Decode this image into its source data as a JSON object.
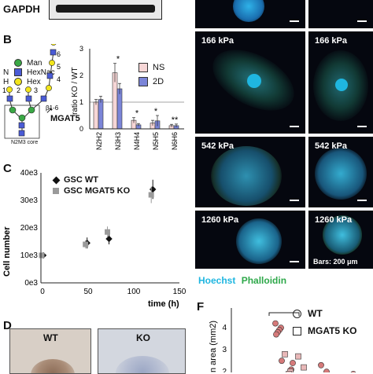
{
  "panelA": {
    "label": "GAPDH"
  },
  "panelB": {
    "letter": "B",
    "glycan_legend": [
      {
        "symbol": "circle",
        "color": "#3aa845",
        "prefix": "",
        "name": "Man"
      },
      {
        "symbol": "square",
        "color": "#4a5bd6",
        "prefix": "N",
        "name": "HexNac"
      },
      {
        "symbol": "circle",
        "color": "#f2e51b",
        "prefix": "H",
        "name": "Hex"
      }
    ],
    "core_label": "N2M3 core",
    "enzyme_label": "MGAT5",
    "linkage_label": "β1-6",
    "branch_numbers": [
      "1",
      "2",
      "3",
      "4",
      "5",
      "6"
    ],
    "chart_data": {
      "type": "bar",
      "categories": [
        "N2H2",
        "N3H3",
        "N4H4",
        "N5H5",
        "N6H6"
      ],
      "series": [
        {
          "name": "NS",
          "color": "#f6d6d6",
          "values": [
            1.0,
            2.1,
            0.32,
            0.22,
            0.12
          ],
          "errors": [
            0.1,
            0.35,
            0.1,
            0.1,
            0.05
          ]
        },
        {
          "name": "2D",
          "color": "#7b85d8",
          "values": [
            1.1,
            1.5,
            0.15,
            0.3,
            0.12
          ],
          "errors": [
            0.12,
            0.2,
            0.05,
            0.2,
            0.06
          ]
        }
      ],
      "ylabel": "ratio KO / WT",
      "ylim": [
        0,
        3
      ],
      "yticks": [
        "0",
        "1",
        "2",
        "3"
      ],
      "significance": [
        "",
        "*",
        "*",
        "*",
        "**"
      ],
      "reference_line": 1
    }
  },
  "panelC": {
    "letter": "C",
    "chart_data": {
      "type": "scatter",
      "xlabel": "time  (h)",
      "ylabel": "Cell number",
      "xlim": [
        0,
        140
      ],
      "ylim": [
        0,
        40000
      ],
      "xticks": [
        "0",
        "50",
        "100",
        "150"
      ],
      "ytick_labels": [
        "0e3",
        "10e3",
        "20e3",
        "30e3",
        "40e3"
      ],
      "series": [
        {
          "name": "GSC WT",
          "marker": "diamond",
          "color": "#111111",
          "x": [
            0,
            48,
            72,
            120
          ],
          "y": [
            10000,
            14500,
            16000,
            34000
          ],
          "err": [
            500,
            2000,
            2000,
            3500
          ]
        },
        {
          "name": "GSC MGAT5 KO",
          "marker": "square",
          "color": "#9a9a9a",
          "x": [
            0,
            48,
            72,
            120
          ],
          "y": [
            10000,
            14000,
            18500,
            32000
          ],
          "err": [
            500,
            1500,
            2000,
            3000
          ]
        }
      ]
    }
  },
  "panelD": {
    "letter": "D",
    "wt_label": "WT",
    "ko_label": "KO"
  },
  "panelE": {
    "tiles": [
      {
        "kpa": ""
      },
      {
        "kpa": ""
      },
      {
        "kpa": "166 kPa"
      },
      {
        "kpa": "166 kPa"
      },
      {
        "kpa": "542 kPa"
      },
      {
        "kpa": "542 kPa"
      },
      {
        "kpa": "1260 kPa"
      },
      {
        "kpa": "1260 kPa"
      }
    ],
    "bars_label": "Bars: 200 μm",
    "stain_hoechst": "Hoechst",
    "stain_phalloidin": "Phalloidin",
    "hoechst_color": "#1fb6e0",
    "phalloidin_color": "#2ea84a"
  },
  "panelF": {
    "letter": "F",
    "ylabel": "n area (mm2)",
    "yticks": [
      "4",
      "3",
      "2"
    ],
    "significance": "****",
    "legend": [
      {
        "marker": "circle",
        "name": "WT"
      },
      {
        "marker": "square",
        "name": "MGAT5 KO"
      }
    ],
    "chart_data": {
      "type": "scatter",
      "ylim": [
        1.8,
        5
      ],
      "series": [
        {
          "name": "WT",
          "marker": "circle",
          "color": "#d57a7a",
          "x": [
            0,
            0,
            0,
            0,
            0,
            0,
            1,
            1,
            1,
            2,
            2,
            3
          ],
          "y": [
            4.3,
            4.1,
            4.0,
            3.9,
            3.8,
            2.6,
            2.5,
            2.2,
            2.0,
            2.4,
            2.1,
            2.0
          ]
        },
        {
          "name": "MGAT5 KO",
          "marker": "square",
          "color": "#e8b8b8",
          "x": [
            0,
            0,
            0,
            0,
            1,
            1
          ],
          "y": [
            2.9,
            2.1,
            2.0,
            1.9,
            2.8,
            2.3
          ]
        }
      ]
    }
  }
}
